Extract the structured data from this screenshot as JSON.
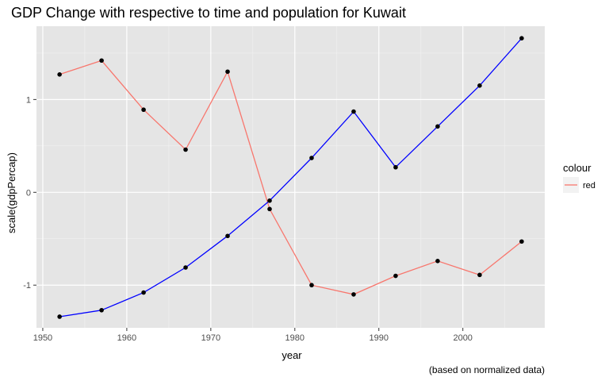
{
  "chart_data": {
    "type": "line",
    "title": "GDP Change with respective to time and population for Kuwait",
    "xlabel": "year",
    "ylabel": "scale(gdpPercap)",
    "caption": "(based on normalized data)",
    "x": [
      1952,
      1957,
      1962,
      1967,
      1972,
      1977,
      1982,
      1987,
      1992,
      1997,
      2002,
      2007
    ],
    "xlim": [
      1949.25,
      2009.75
    ],
    "ylim": [
      -1.46,
      1.79
    ],
    "x_ticks": [
      1950,
      1960,
      1970,
      1980,
      1990,
      2000
    ],
    "x_tick_labels": [
      "1950",
      "1960",
      "1970",
      "1980",
      "1990",
      "2000"
    ],
    "y_ticks": [
      -1,
      0,
      1
    ],
    "y_tick_labels": [
      "-1",
      "0",
      "1"
    ],
    "grid": true,
    "legend": {
      "title": "colour",
      "position": "right",
      "entries": [
        {
          "label": "red",
          "color": "#F8766D"
        }
      ]
    },
    "series": [
      {
        "name": "red",
        "color": "#F8766D",
        "values": [
          1.27,
          1.42,
          0.89,
          0.46,
          1.3,
          -0.18,
          -1.0,
          -1.1,
          -0.9,
          -0.74,
          -0.89,
          -0.53
        ]
      },
      {
        "color": "#0000FF",
        "values": [
          -1.34,
          -1.27,
          -1.08,
          -0.81,
          -0.47,
          -0.09,
          0.37,
          0.87,
          0.27,
          0.71,
          1.15,
          1.66
        ]
      }
    ],
    "point_color": "#000000",
    "panel_background": "#E5E5E5"
  }
}
